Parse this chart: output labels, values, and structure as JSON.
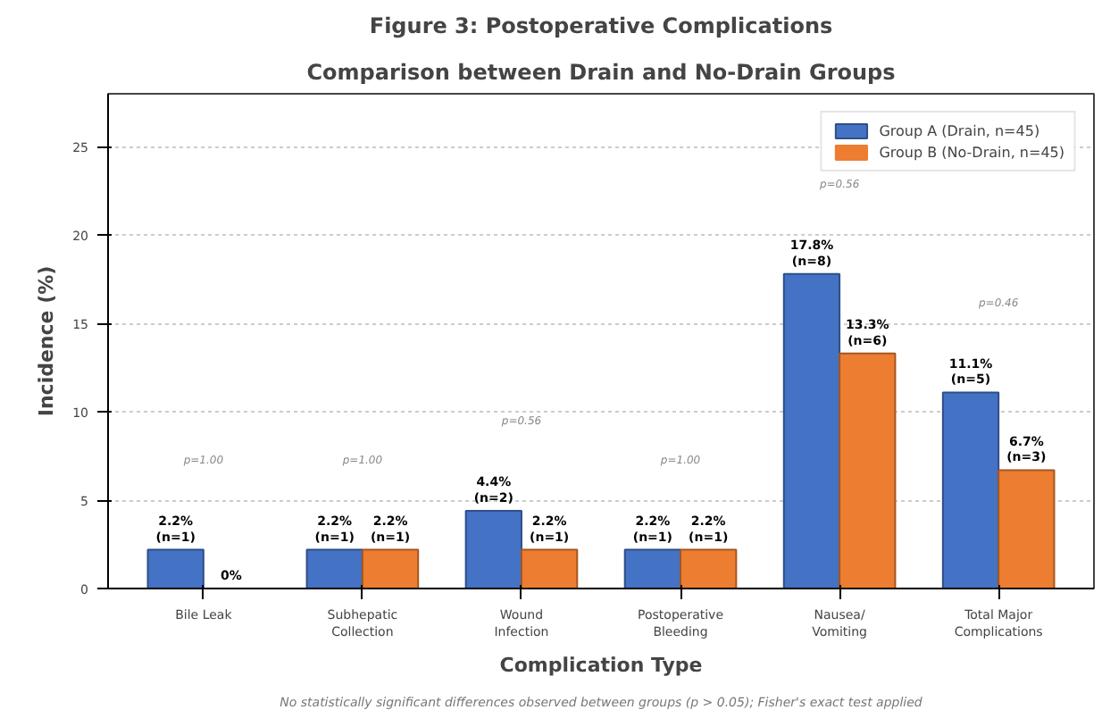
{
  "chart_data": {
    "type": "bar",
    "title": "Figure 3: Postoperative Complications",
    "subtitle": "Comparison between Drain and No-Drain Groups",
    "xlabel": "Complication Type",
    "ylabel": "Incidence (%)",
    "categories": [
      "Bile Leak",
      "Subhepatic\nCollection",
      "Wound\nInfection",
      "Postoperative\nBleeding",
      "Nausea/\nVomiting",
      "Total Major\nComplications"
    ],
    "series": [
      {
        "name": "Group A (Drain, n=45)",
        "color": "#4472c4",
        "values": [
          2.2,
          2.2,
          4.4,
          2.2,
          17.8,
          11.1
        ],
        "value_labels": [
          "2.2%\n(n=1)",
          "2.2%\n(n=1)",
          "4.4%\n(n=2)",
          "2.2%\n(n=1)",
          "17.8%\n(n=8)",
          "11.1%\n(n=5)"
        ]
      },
      {
        "name": "Group B (No-Drain, n=45)",
        "color": "#ed7d31",
        "values": [
          0,
          2.2,
          2.2,
          2.2,
          13.3,
          6.7
        ],
        "value_labels": [
          "0%",
          "2.2%\n(n=1)",
          "2.2%\n(n=1)",
          "2.2%\n(n=1)",
          "13.3%\n(n=6)",
          "6.7%\n(n=3)"
        ]
      }
    ],
    "ylim": [
      0,
      28
    ],
    "yticks": [
      0,
      5,
      10,
      15,
      20,
      25
    ],
    "grid": "y",
    "legend": "top right",
    "annotations": [
      "p=1.00",
      "p=1.00",
      "p=0.56",
      "p=1.00",
      "p=0.56",
      "p=0.46",
      "No statistically significant differences observed between groups (p > 0.05); Fisher's exact test applied"
    ]
  }
}
